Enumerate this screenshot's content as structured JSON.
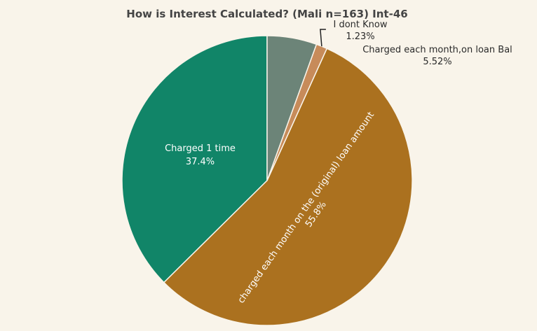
{
  "chart_data": {
    "type": "pie",
    "title": "How is Interest Calculated? (Mali n=163) Int-46",
    "slices": [
      {
        "label": "Charged 1 time",
        "value": 37.4,
        "value_label": "37.4%",
        "color": "#118568"
      },
      {
        "label": "charged each month on the (original) loan amount",
        "value": 55.8,
        "value_label": "55.8%",
        "color": "#ab711f"
      },
      {
        "label": "I dont Know",
        "value": 1.23,
        "value_label": "1.23%",
        "color": "#c78b5a"
      },
      {
        "label": "Charged each month,on loan Bal",
        "value": 5.52,
        "value_label": "5.52%",
        "color": "#6c8478"
      }
    ],
    "legend": "none"
  }
}
